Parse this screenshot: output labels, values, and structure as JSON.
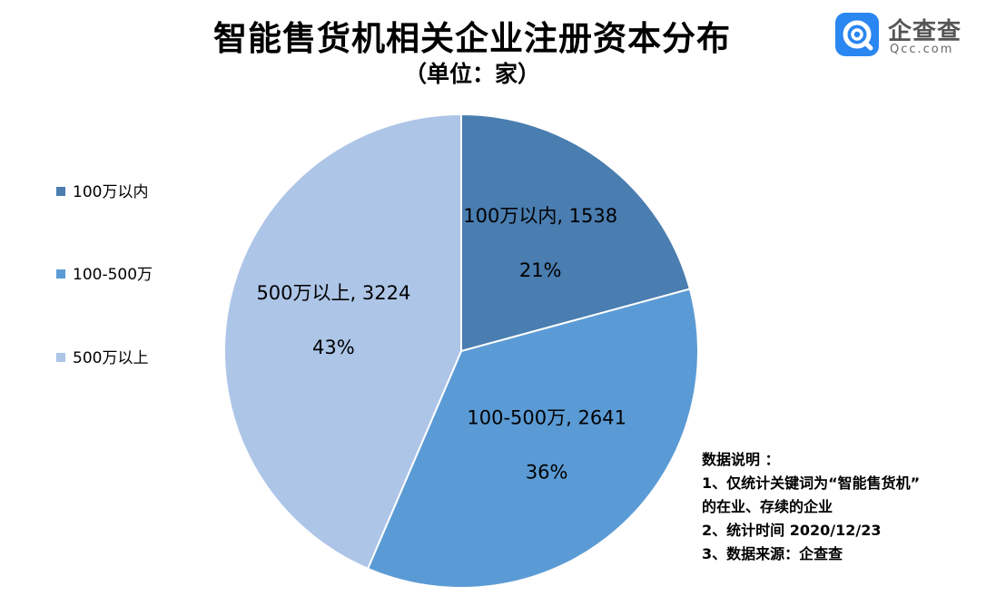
{
  "header": {
    "title": "智能售货机相关企业注册资本分布",
    "subtitle": "（单位：家）"
  },
  "logo": {
    "name": "企查查",
    "sub": "Qcc.com",
    "color": "#2a86f0"
  },
  "chart_data": {
    "type": "pie",
    "title": "智能售货机相关企业注册资本分布",
    "subtitle": "（单位：家）",
    "legend_position": "left",
    "slices": [
      {
        "label": "100万以内",
        "value": 1538,
        "percent": "21%",
        "color": "#4a7db0",
        "data_label": "100万以内, 1538"
      },
      {
        "label": "100-500万",
        "value": 2641,
        "percent": "36%",
        "color": "#5b9bd5",
        "data_label": "100-500万, 2641"
      },
      {
        "label": "500万以上",
        "value": 3224,
        "percent": "43%",
        "color": "#adc5e7",
        "data_label": "500万以上, 3224"
      }
    ]
  },
  "notes": {
    "heading": "数据说明 ：",
    "lines": [
      "1、仅统计关键词为“智能售货机”",
      "的在业、存续的企业",
      "2、统计时间 2020/12/23",
      "3、数据来源：企查查"
    ]
  }
}
